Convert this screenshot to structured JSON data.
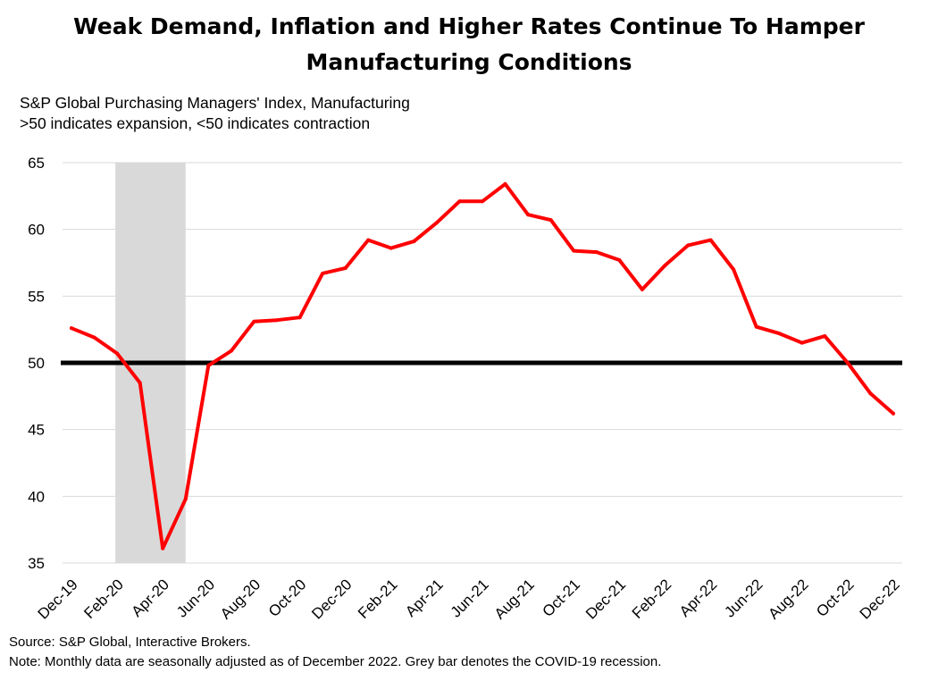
{
  "title": {
    "line1": "Weak Demand, Inflation and Higher Rates Continue To Hamper",
    "line2": "Manufacturing Conditions"
  },
  "subtitle": {
    "line1": "S&P Global Purchasing Managers' Index, Manufacturing",
    "line2": ">50 indicates expansion, <50 indicates contraction"
  },
  "notes": {
    "source": "Source: S&P Global, Interactive Brokers.",
    "note": "Note: Monthly data are seasonally adjusted as of December 2022. Grey bar denotes the COVID-19 recession."
  },
  "chart_data": {
    "type": "line",
    "ylim": [
      35,
      65
    ],
    "yticks": [
      35,
      40,
      45,
      50,
      55,
      60,
      65
    ],
    "grid": true,
    "x": [
      "Dec-19",
      "Jan-20",
      "Feb-20",
      "Mar-20",
      "Apr-20",
      "May-20",
      "Jun-20",
      "Jul-20",
      "Aug-20",
      "Sep-20",
      "Oct-20",
      "Nov-20",
      "Dec-20",
      "Jan-21",
      "Feb-21",
      "Mar-21",
      "Apr-21",
      "May-21",
      "Jun-21",
      "Jul-21",
      "Aug-21",
      "Sep-21",
      "Oct-21",
      "Nov-21",
      "Dec-21",
      "Jan-22",
      "Feb-22",
      "Mar-22",
      "Apr-22",
      "May-22",
      "Jun-22",
      "Jul-22",
      "Aug-22",
      "Sep-22",
      "Oct-22",
      "Nov-22",
      "Dec-22"
    ],
    "xtick_labels": [
      "Dec-19",
      "Feb-20",
      "Apr-20",
      "Jun-20",
      "Aug-20",
      "Oct-20",
      "Dec-20",
      "Feb-21",
      "Apr-21",
      "Jun-21",
      "Aug-21",
      "Oct-21",
      "Dec-21",
      "Feb-22",
      "Apr-22",
      "Jun-22",
      "Aug-22",
      "Oct-22",
      "Dec-22"
    ],
    "series": [
      {
        "color": "#ff0000",
        "values": [
          52.6,
          51.9,
          50.7,
          48.5,
          36.1,
          39.8,
          49.8,
          50.9,
          53.1,
          53.2,
          53.4,
          56.7,
          57.1,
          59.2,
          58.6,
          59.1,
          60.5,
          62.1,
          62.1,
          63.4,
          61.1,
          60.7,
          58.4,
          58.3,
          57.7,
          55.5,
          57.3,
          58.8,
          59.2,
          57.0,
          52.7,
          52.2,
          51.5,
          52.0,
          50.0,
          47.7,
          46.2
        ]
      }
    ],
    "reference_line": {
      "value": 50,
      "color": "#000000"
    },
    "shaded_region": {
      "from": "Feb-20",
      "to": "May-20",
      "color": "#d9d9d9"
    }
  }
}
